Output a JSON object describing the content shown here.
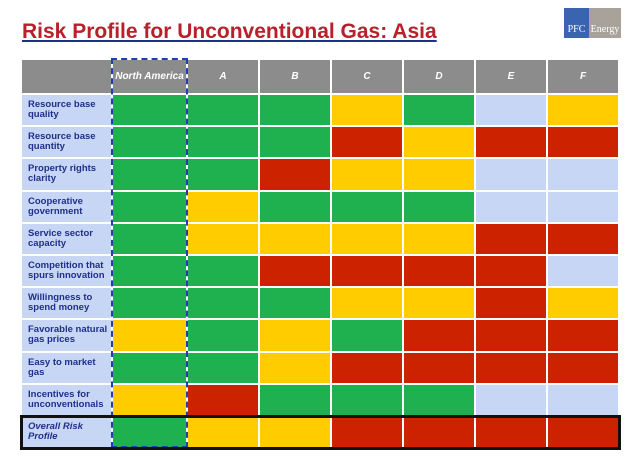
{
  "header": {
    "title": "Risk Profile for Unconventional Gas: Asia",
    "logo": [
      "PFC",
      "Energy"
    ]
  },
  "table": {
    "columns": [
      "North America",
      "A",
      "B",
      "C",
      "D",
      "E",
      "F"
    ],
    "rows": [
      {
        "label": "Resource base quality",
        "colors": [
          "#1fb14f",
          "#1fb14f",
          "#1fb14f",
          "#ffcc00",
          "#1fb14f",
          "#c8d6f6",
          "#ffcc00"
        ]
      },
      {
        "label": "Resource base quantity",
        "colors": [
          "#1fb14f",
          "#1fb14f",
          "#1fb14f",
          "#cc2200",
          "#ffcc00",
          "#cc2200",
          "#cc2200"
        ]
      },
      {
        "label": "Property rights clarity",
        "colors": [
          "#1fb14f",
          "#1fb14f",
          "#cc2200",
          "#ffcc00",
          "#ffcc00",
          "#c8d6f6",
          "#c8d6f6"
        ]
      },
      {
        "label": "Cooperative government",
        "colors": [
          "#1fb14f",
          "#ffcc00",
          "#1fb14f",
          "#1fb14f",
          "#1fb14f",
          "#c8d6f6",
          "#c8d6f6"
        ]
      },
      {
        "label": "Service sector capacity",
        "colors": [
          "#1fb14f",
          "#ffcc00",
          "#ffcc00",
          "#ffcc00",
          "#ffcc00",
          "#cc2200",
          "#cc2200"
        ]
      },
      {
        "label": "Competition that spurs innovation",
        "colors": [
          "#1fb14f",
          "#1fb14f",
          "#cc2200",
          "#cc2200",
          "#cc2200",
          "#cc2200",
          "#c8d6f6"
        ]
      },
      {
        "label": "Willingness to spend money",
        "colors": [
          "#1fb14f",
          "#1fb14f",
          "#1fb14f",
          "#ffcc00",
          "#ffcc00",
          "#cc2200",
          "#ffcc00"
        ]
      },
      {
        "label": "Favorable natural gas prices",
        "colors": [
          "#ffcc00",
          "#1fb14f",
          "#ffcc00",
          "#1fb14f",
          "#cc2200",
          "#cc2200",
          "#cc2200"
        ]
      },
      {
        "label": "Easy to market gas",
        "colors": [
          "#1fb14f",
          "#1fb14f",
          "#ffcc00",
          "#cc2200",
          "#cc2200",
          "#cc2200",
          "#cc2200"
        ]
      },
      {
        "label": "Incentives for unconventionals",
        "colors": [
          "#ffcc00",
          "#cc2200",
          "#1fb14f",
          "#1fb14f",
          "#1fb14f",
          "#c8d6f6",
          "#c8d6f6"
        ]
      },
      {
        "label": "Overall Risk Profile",
        "colors": [
          "#1fb14f",
          "#ffcc00",
          "#ffcc00",
          "#cc2200",
          "#cc2200",
          "#cc2200",
          "#cc2200"
        ]
      }
    ]
  }
}
